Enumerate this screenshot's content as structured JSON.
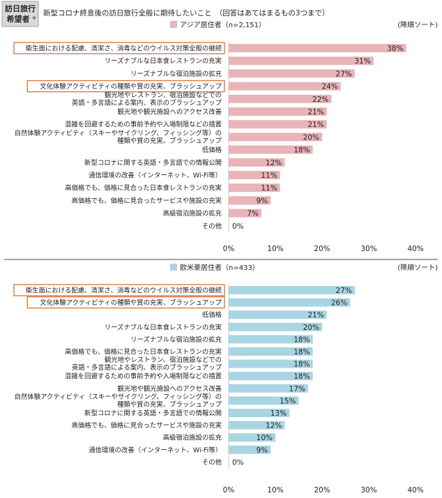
{
  "header": {
    "tag_line1": "訪日旅行",
    "tag_line2": "希望者",
    "tag_mark": "※",
    "title": "新型コロナ終息後の訪日旅行全般に期待したいこと　（回答はあてはまるもの3つまで）"
  },
  "colors": {
    "asia": "#e8b4b8",
    "west": "#a9d5e3",
    "highlight": "#e07b39",
    "divider": "#6e6e6e"
  },
  "chart_data": [
    {
      "type": "bar",
      "orientation": "horizontal",
      "legend": "アジア居住者（n=2,151）",
      "sort_note": "(降順ソート)",
      "xlim": [
        0,
        40
      ],
      "xticks": [
        "0%",
        "10%",
        "20%",
        "30%",
        "40%"
      ],
      "series": [
        {
          "name": "アジア居住者（n=2,151）",
          "color": "#e8b4b8",
          "bars": [
            {
              "label": [
                "衛生面における配慮、清潔さ、消毒などのウイルス対策全般の継続"
              ],
              "value": 38,
              "value_label": "38%",
              "highlight": true
            },
            {
              "label": [
                "リーズナブルな日本食レストランの充実"
              ],
              "value": 31,
              "value_label": "31%"
            },
            {
              "label": [
                "リーズナブルな宿泊施設の拡充"
              ],
              "value": 27,
              "value_label": "27%"
            },
            {
              "label": [
                "文化体験アクティビティの種類や質の充実、ブラッシュアップ"
              ],
              "value": 24,
              "value_label": "24%",
              "highlight": true
            },
            {
              "label": [
                "観光地やレストラン、宿泊施設などでの",
                "英語・多言語による案内、表示のブラッシュアップ"
              ],
              "value": 22,
              "value_label": "22%"
            },
            {
              "label": [
                "観光地や観光施設へのアクセス改善"
              ],
              "value": 21,
              "value_label": "21%"
            },
            {
              "label": [
                "混雑を回避するための事前予約や入場制限などの措置"
              ],
              "value": 21,
              "value_label": "21%"
            },
            {
              "label": [
                "自然体験アクティビティ（スキーやサイクリング、フィッシング等）の",
                "種類や質の充実、ブラッシュアップ"
              ],
              "value": 20,
              "value_label": "20%"
            },
            {
              "label": [
                "低価格"
              ],
              "value": 18,
              "value_label": "18%"
            },
            {
              "label": [
                "新型コロナに関する英語・多言語での情報公開"
              ],
              "value": 12,
              "value_label": "12%"
            },
            {
              "label": [
                "通信環境の改善（インターネット、Wi-Fi等）"
              ],
              "value": 11,
              "value_label": "11%"
            },
            {
              "label": [
                "高価格でも、価格に見合った日本食レストランの充実"
              ],
              "value": 11,
              "value_label": "11%"
            },
            {
              "label": [
                "高価格でも、価格に見合ったサービスや施設の充実"
              ],
              "value": 9,
              "value_label": "9%"
            },
            {
              "label": [
                "高級宿泊施設の拡充"
              ],
              "value": 7,
              "value_label": "7%"
            },
            {
              "label": [
                "その他"
              ],
              "value": 0,
              "value_label": "0%"
            }
          ]
        }
      ]
    },
    {
      "type": "bar",
      "orientation": "horizontal",
      "legend": "欧米豪居住者（n=433）",
      "sort_note": "(降順ソート)",
      "xlim": [
        0,
        40
      ],
      "xticks": [
        "0%",
        "10%",
        "20%",
        "30%",
        "40%"
      ],
      "series": [
        {
          "name": "欧米豪居住者（n=433）",
          "color": "#a9d5e3",
          "bars": [
            {
              "label": [
                "衛生面における配慮、清潔さ、消毒などのウイルス対策全般の継続"
              ],
              "value": 27,
              "value_label": "27%",
              "highlight": true
            },
            {
              "label": [
                "文化体験アクティビティの種類や質の充実、ブラッシュアップ"
              ],
              "value": 26,
              "value_label": "26%",
              "highlight": true
            },
            {
              "label": [
                "低価格"
              ],
              "value": 21,
              "value_label": "21%"
            },
            {
              "label": [
                "リーズナブルな日本食レストランの充実"
              ],
              "value": 20,
              "value_label": "20%"
            },
            {
              "label": [
                "リーズナブルな宿泊施設の拡充"
              ],
              "value": 18,
              "value_label": "18%"
            },
            {
              "label": [
                "高価格でも、価格に見合った日本食レストランの充実"
              ],
              "value": 18,
              "value_label": "18%"
            },
            {
              "label": [
                "観光地やレストラン、宿泊施設などでの",
                "英語・多言語による案内、表示のブラッシュアップ"
              ],
              "value": 18,
              "value_label": "18%"
            },
            {
              "label": [
                "混雑を回避するための事前予約や入場制限などの措置"
              ],
              "value": 18,
              "value_label": "18%"
            },
            {
              "label": [
                "観光地や観光施設へのアクセス改善"
              ],
              "value": 17,
              "value_label": "17%"
            },
            {
              "label": [
                "自然体験アクティビティ（スキーやサイクリング、フィッシング等）の",
                "種類や質の充実、ブラッシュアップ"
              ],
              "value": 15,
              "value_label": "15%"
            },
            {
              "label": [
                "新型コロナに関する英語・多言語での情報公開"
              ],
              "value": 13,
              "value_label": "13%"
            },
            {
              "label": [
                "高価格でも、価格に見合ったサービスや施設の充実"
              ],
              "value": 12,
              "value_label": "12%"
            },
            {
              "label": [
                "高級宿泊施設の拡充"
              ],
              "value": 10,
              "value_label": "10%"
            },
            {
              "label": [
                "通信環境の改善（インターネット、Wi-Fi等）"
              ],
              "value": 9,
              "value_label": "9%"
            },
            {
              "label": [
                "その他"
              ],
              "value": 0,
              "value_label": "0%"
            }
          ]
        }
      ]
    }
  ]
}
